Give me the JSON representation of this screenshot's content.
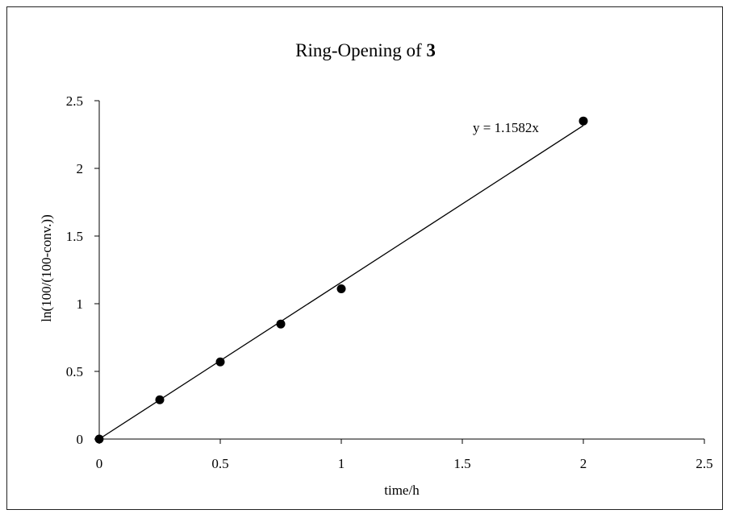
{
  "chart_data": {
    "type": "scatter",
    "title": "Ring-Opening of",
    "title_bold": "3",
    "xlabel": "time/h",
    "ylabel": "ln(100/(100-conv.))",
    "xlim": [
      0,
      2.5
    ],
    "ylim": [
      0,
      2.5
    ],
    "x_ticks": [
      "0",
      "0.5",
      "1",
      "1.5",
      "2",
      "2.5"
    ],
    "y_ticks": [
      "0",
      "0.5",
      "1",
      "1.5",
      "2",
      "2.5"
    ],
    "grid": false,
    "legend": "none",
    "series": [
      {
        "points": [
          {
            "x": 0,
            "y": 0
          },
          {
            "x": 0.25,
            "y": 0.29
          },
          {
            "x": 0.5,
            "y": 0.57
          },
          {
            "x": 0.75,
            "y": 0.85
          },
          {
            "x": 1.0,
            "y": 1.11
          },
          {
            "x": 2.0,
            "y": 2.35
          }
        ],
        "marker_color": "#000000"
      }
    ],
    "trendline": {
      "equation": "y = 1.1582x",
      "slope": 1.1582,
      "intercept": 0,
      "x_range": [
        0,
        2.0
      ],
      "color": "#000000"
    }
  }
}
